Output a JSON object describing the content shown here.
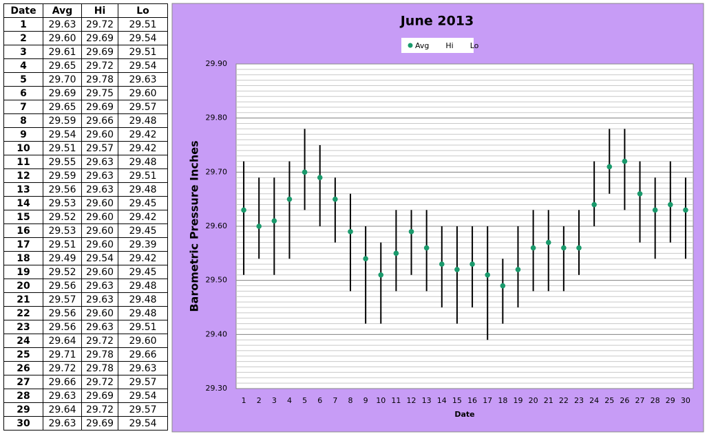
{
  "table": {
    "header": [
      "Date",
      "Avg",
      "Hi",
      "Lo"
    ],
    "rows": [
      [
        "1",
        "29.63",
        "29.72",
        "29.51"
      ],
      [
        "2",
        "29.60",
        "29.69",
        "29.54"
      ],
      [
        "3",
        "29.61",
        "29.69",
        "29.51"
      ],
      [
        "4",
        "29.65",
        "29.72",
        "29.54"
      ],
      [
        "5",
        "29.70",
        "29.78",
        "29.63"
      ],
      [
        "6",
        "29.69",
        "29.75",
        "29.60"
      ],
      [
        "7",
        "29.65",
        "29.69",
        "29.57"
      ],
      [
        "8",
        "29.59",
        "29.66",
        "29.48"
      ],
      [
        "9",
        "29.54",
        "29.60",
        "29.42"
      ],
      [
        "10",
        "29.51",
        "29.57",
        "29.42"
      ],
      [
        "11",
        "29.55",
        "29.63",
        "29.48"
      ],
      [
        "12",
        "29.59",
        "29.63",
        "29.51"
      ],
      [
        "13",
        "29.56",
        "29.63",
        "29.48"
      ],
      [
        "14",
        "29.53",
        "29.60",
        "29.45"
      ],
      [
        "15",
        "29.52",
        "29.60",
        "29.42"
      ],
      [
        "16",
        "29.53",
        "29.60",
        "29.45"
      ],
      [
        "17",
        "29.51",
        "29.60",
        "29.39"
      ],
      [
        "18",
        "29.49",
        "29.54",
        "29.42"
      ],
      [
        "19",
        "29.52",
        "29.60",
        "29.45"
      ],
      [
        "20",
        "29.56",
        "29.63",
        "29.48"
      ],
      [
        "21",
        "29.57",
        "29.63",
        "29.48"
      ],
      [
        "22",
        "29.56",
        "29.60",
        "29.48"
      ],
      [
        "23",
        "29.56",
        "29.63",
        "29.51"
      ],
      [
        "24",
        "29.64",
        "29.72",
        "29.60"
      ],
      [
        "25",
        "29.71",
        "29.78",
        "29.66"
      ],
      [
        "26",
        "29.72",
        "29.78",
        "29.63"
      ],
      [
        "27",
        "29.66",
        "29.72",
        "29.57"
      ],
      [
        "28",
        "29.63",
        "29.69",
        "29.54"
      ],
      [
        "29",
        "29.64",
        "29.72",
        "29.57"
      ],
      [
        "30",
        "29.63",
        "29.69",
        "29.54"
      ]
    ]
  },
  "chart_data": {
    "type": "hilo",
    "title": "June 2013",
    "x_label": "Date",
    "y_label": "Barometric Pressure Inches",
    "categories": [
      "1",
      "2",
      "3",
      "4",
      "5",
      "6",
      "7",
      "8",
      "9",
      "10",
      "11",
      "12",
      "13",
      "14",
      "15",
      "16",
      "17",
      "18",
      "19",
      "20",
      "21",
      "22",
      "23",
      "24",
      "25",
      "26",
      "27",
      "28",
      "29",
      "30"
    ],
    "series": [
      {
        "name": "Avg",
        "color": "#1a9a6c",
        "marker": "circle",
        "values": [
          29.63,
          29.6,
          29.61,
          29.65,
          29.7,
          29.69,
          29.65,
          29.59,
          29.54,
          29.51,
          29.55,
          29.59,
          29.56,
          29.53,
          29.52,
          29.53,
          29.51,
          29.49,
          29.52,
          29.56,
          29.57,
          29.56,
          29.56,
          29.64,
          29.71,
          29.72,
          29.66,
          29.63,
          29.64,
          29.63
        ]
      },
      {
        "name": "Hi",
        "color": "#000000",
        "marker": "none",
        "values": [
          29.72,
          29.69,
          29.69,
          29.72,
          29.78,
          29.75,
          29.69,
          29.66,
          29.6,
          29.57,
          29.63,
          29.63,
          29.63,
          29.6,
          29.6,
          29.6,
          29.6,
          29.54,
          29.6,
          29.63,
          29.63,
          29.6,
          29.63,
          29.72,
          29.78,
          29.78,
          29.72,
          29.69,
          29.72,
          29.69
        ]
      },
      {
        "name": "Lo",
        "color": "#000000",
        "marker": "none",
        "values": [
          29.51,
          29.54,
          29.51,
          29.54,
          29.63,
          29.6,
          29.57,
          29.48,
          29.42,
          29.42,
          29.48,
          29.51,
          29.48,
          29.45,
          29.42,
          29.45,
          29.39,
          29.42,
          29.45,
          29.48,
          29.48,
          29.48,
          29.51,
          29.6,
          29.66,
          29.63,
          29.57,
          29.54,
          29.57,
          29.54
        ]
      }
    ],
    "ylim": [
      29.3,
      29.9
    ],
    "yticks": [
      {
        "value": 29.3,
        "label": "29.30"
      },
      {
        "value": 29.4,
        "label": "29.40"
      },
      {
        "value": 29.5,
        "label": "29.50"
      },
      {
        "value": 29.6,
        "label": "29.60"
      },
      {
        "value": 29.7,
        "label": "29.70"
      },
      {
        "value": 29.8,
        "label": "29.80"
      },
      {
        "value": 29.9,
        "label": "29.90"
      }
    ],
    "grid": true,
    "minor_grid_step": 0.01,
    "legend": "top"
  }
}
